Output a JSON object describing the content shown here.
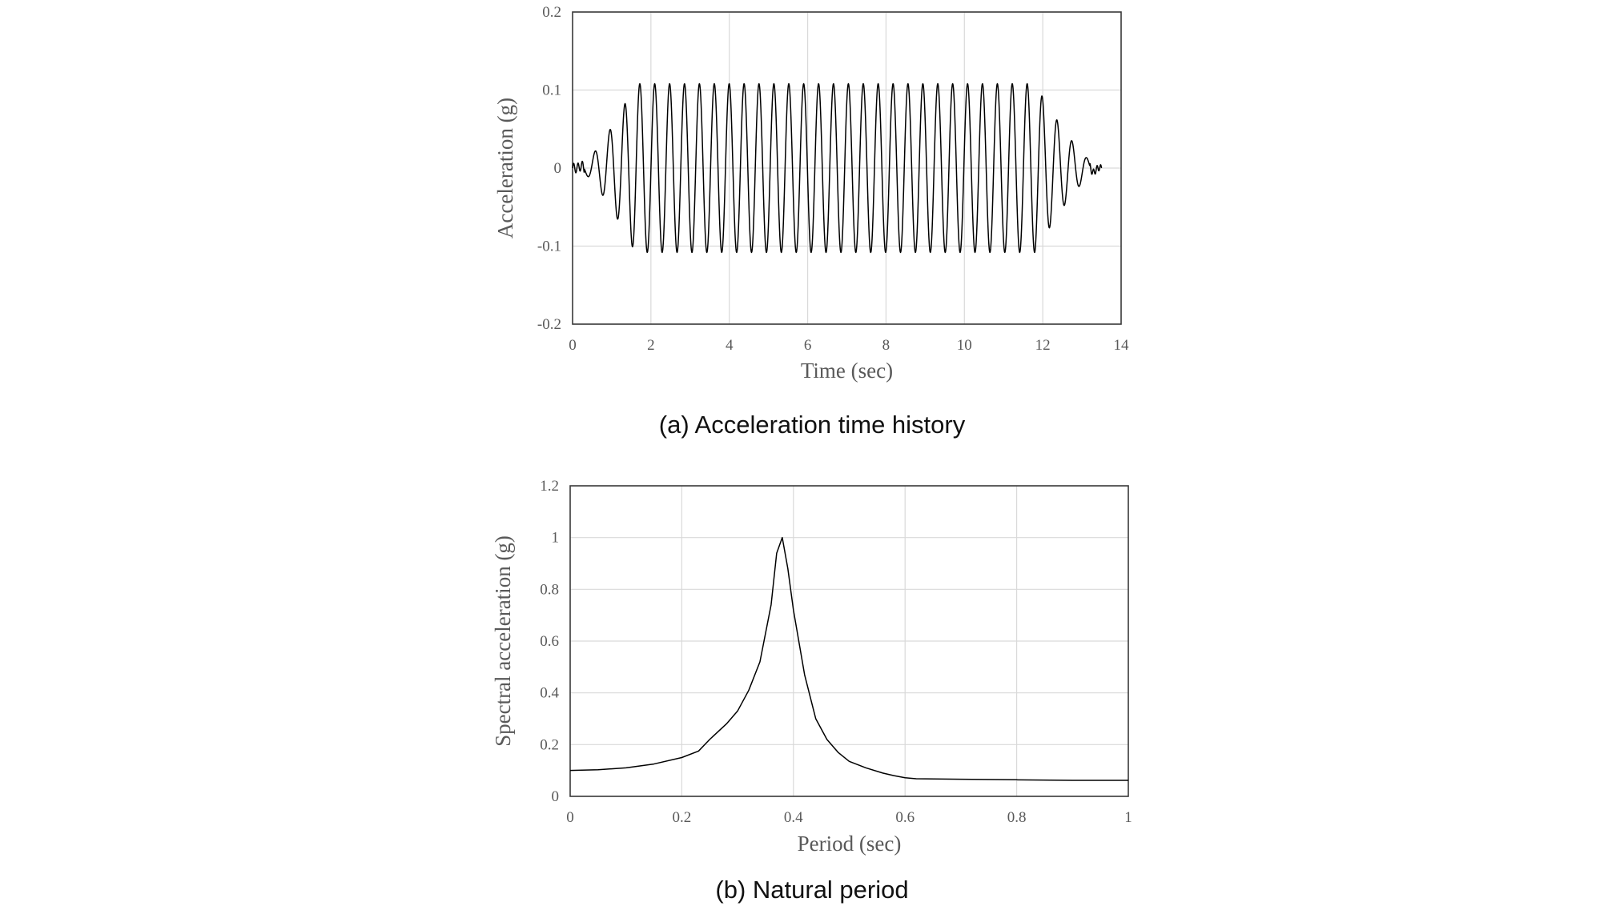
{
  "colors": {
    "line": "#000000",
    "grid": "#d9d9d9",
    "text": "#595959"
  },
  "chart_data": [
    {
      "type": "line",
      "title": "",
      "caption": "(a) Acceleration time history",
      "xlabel": "Time (sec)",
      "ylabel": "Acceleration (g)",
      "xlim": [
        0,
        14
      ],
      "ylim": [
        -0.2,
        0.2
      ],
      "xticks": [
        0,
        2,
        4,
        6,
        8,
        10,
        12,
        14
      ],
      "yticks": [
        0.2,
        0.1,
        0,
        -0.1,
        -0.2
      ],
      "grid": true,
      "series": [
        {
          "name": "Acceleration",
          "signal": {
            "frequency_hz": 2.63,
            "peak_amplitude_g": 0.108,
            "start_sec": 0.1,
            "end_sec": 13.5,
            "ramp_up_end_sec": 1.6,
            "ramp_down_start_sec": 11.8
          }
        }
      ]
    },
    {
      "type": "line",
      "title": "",
      "caption": "(b) Natural period",
      "xlabel": "Period (sec)",
      "ylabel": "Spectral acceleration (g)",
      "xlim": [
        0,
        1
      ],
      "ylim": [
        0,
        1.2
      ],
      "xticks": [
        0,
        0.2,
        0.4,
        0.6,
        0.8,
        1
      ],
      "yticks": [
        1.2,
        1,
        0.8,
        0.6,
        0.4,
        0.2,
        0
      ],
      "grid": true,
      "series": [
        {
          "name": "Spectral acceleration",
          "x": [
            0,
            0.05,
            0.1,
            0.15,
            0.2,
            0.23,
            0.25,
            0.28,
            0.3,
            0.32,
            0.34,
            0.36,
            0.37,
            0.38,
            0.39,
            0.4,
            0.42,
            0.44,
            0.46,
            0.48,
            0.5,
            0.53,
            0.56,
            0.58,
            0.6,
            0.62,
            0.7,
            0.8,
            0.9,
            1.0
          ],
          "y": [
            0.1,
            0.103,
            0.11,
            0.125,
            0.15,
            0.175,
            0.22,
            0.28,
            0.33,
            0.41,
            0.52,
            0.74,
            0.94,
            1.0,
            0.88,
            0.72,
            0.47,
            0.3,
            0.22,
            0.17,
            0.135,
            0.11,
            0.09,
            0.08,
            0.072,
            0.068,
            0.066,
            0.064,
            0.062,
            0.062
          ]
        }
      ]
    }
  ]
}
